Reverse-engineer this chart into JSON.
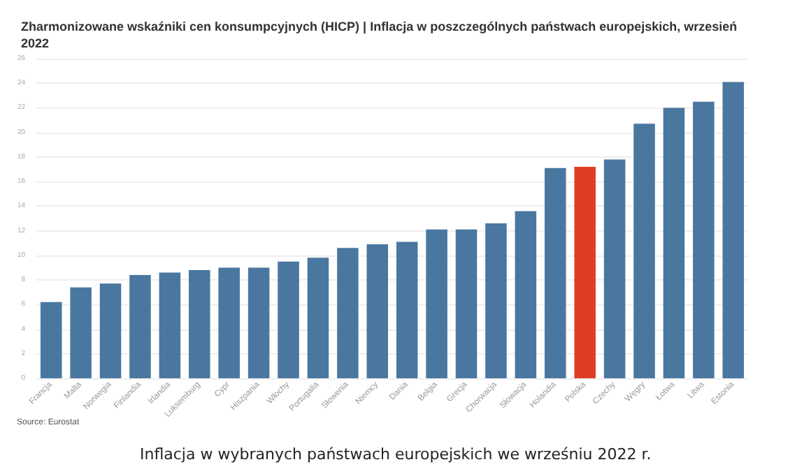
{
  "chart_data": {
    "type": "bar",
    "title": "Zharmonizowane wskaźniki cen konsumpcyjnych (HICP) | Inflacja w poszczególnych państwach europejskich, wrzesień 2022",
    "categories": [
      "Francja",
      "Malta",
      "Norwegia",
      "Finlandia",
      "Irlandia",
      "Luksemburg",
      "Cypr",
      "Hiszpania",
      "Włochy",
      "Portugalia",
      "Słowenia",
      "Niemcy",
      "Dania",
      "Belgia",
      "Grecja",
      "Chorwacja",
      "Słowacja",
      "Holandia",
      "Polska",
      "Czechy",
      "Węgry",
      "Łotwa",
      "Litwa",
      "Estonia"
    ],
    "values": [
      6.2,
      7.4,
      7.7,
      8.4,
      8.6,
      8.8,
      9.0,
      9.0,
      9.5,
      9.8,
      10.6,
      10.9,
      11.1,
      12.1,
      12.1,
      12.6,
      13.6,
      17.1,
      17.2,
      17.8,
      20.7,
      22.0,
      22.5,
      24.1
    ],
    "colors": [
      "#4a77a0",
      "#4a77a0",
      "#4a77a0",
      "#4a77a0",
      "#4a77a0",
      "#4a77a0",
      "#4a77a0",
      "#4a77a0",
      "#4a77a0",
      "#4a77a0",
      "#4a77a0",
      "#4a77a0",
      "#4a77a0",
      "#4a77a0",
      "#4a77a0",
      "#4a77a0",
      "#4a77a0",
      "#4a77a0",
      "#e03e22",
      "#4a77a0",
      "#4a77a0",
      "#4a77a0",
      "#4a77a0",
      "#4a77a0"
    ],
    "ylim": [
      0,
      26
    ],
    "yticks": [
      0,
      2,
      4,
      6,
      8,
      10,
      12,
      14,
      16,
      18,
      20,
      22,
      24,
      26
    ],
    "grid": "y",
    "annotations": [
      "Source: Eurostat",
      "Inflacja w wybranych państwach europejskich we wrześniu 2022 r."
    ]
  }
}
